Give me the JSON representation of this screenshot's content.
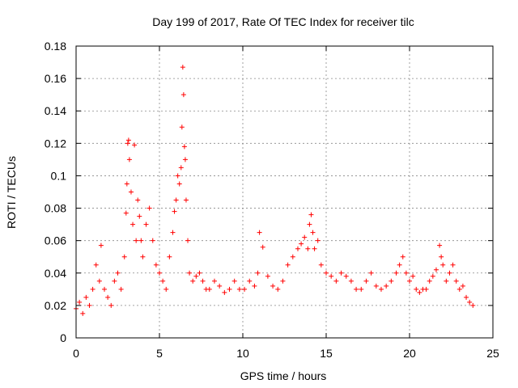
{
  "chart_data": {
    "type": "scatter",
    "title": "Day 199 of 2017, Rate Of TEC Index for receiver tilc",
    "xlabel": "GPS time / hours",
    "ylabel": "ROTI / TECUs",
    "xlim": [
      0,
      25
    ],
    "ylim": [
      0,
      0.18
    ],
    "xticks": [
      0,
      5,
      10,
      15,
      20,
      25
    ],
    "yticks": [
      0,
      0.02,
      0.04,
      0.06,
      0.08,
      0.1,
      0.12,
      0.14,
      0.16,
      0.18
    ],
    "xtick_labels": [
      "0",
      "5",
      "10",
      "15",
      "20",
      "25"
    ],
    "ytick_labels": [
      "0",
      "0.02",
      "0.04",
      "0.06",
      "0.08",
      "0.1",
      "0.12",
      "0.14",
      "0.16",
      "0.18"
    ],
    "grid": true,
    "marker": "+",
    "color": "#ff0000",
    "series": [
      {
        "name": "ROTI",
        "x": [
          0.0,
          0.2,
          0.4,
          0.6,
          0.8,
          1.0,
          1.2,
          1.4,
          1.5,
          1.7,
          1.9,
          2.1,
          2.3,
          2.5,
          2.7,
          2.9,
          3.0,
          3.05,
          3.1,
          3.15,
          3.2,
          3.3,
          3.4,
          3.5,
          3.6,
          3.7,
          3.8,
          3.9,
          4.0,
          4.2,
          4.4,
          4.6,
          4.8,
          5.0,
          5.2,
          5.4,
          5.6,
          5.8,
          5.9,
          6.0,
          6.1,
          6.2,
          6.3,
          6.35,
          6.4,
          6.45,
          6.5,
          6.55,
          6.6,
          6.7,
          6.8,
          7.0,
          7.2,
          7.4,
          7.6,
          7.8,
          8.0,
          8.3,
          8.6,
          8.9,
          9.2,
          9.5,
          9.8,
          10.1,
          10.4,
          10.7,
          10.9,
          11.0,
          11.2,
          11.5,
          11.8,
          12.1,
          12.4,
          12.7,
          13.0,
          13.3,
          13.5,
          13.7,
          13.9,
          14.0,
          14.1,
          14.2,
          14.3,
          14.5,
          14.7,
          15.0,
          15.3,
          15.6,
          15.9,
          16.2,
          16.5,
          16.8,
          17.1,
          17.4,
          17.7,
          18.0,
          18.3,
          18.6,
          18.9,
          19.2,
          19.4,
          19.6,
          19.8,
          20.0,
          20.2,
          20.4,
          20.6,
          20.8,
          21.0,
          21.2,
          21.4,
          21.6,
          21.8,
          21.9,
          22.0,
          22.2,
          22.4,
          22.6,
          22.8,
          23.0,
          23.2,
          23.4,
          23.6,
          23.8
        ],
        "y": [
          0.018,
          0.022,
          0.015,
          0.025,
          0.02,
          0.03,
          0.045,
          0.035,
          0.057,
          0.03,
          0.025,
          0.02,
          0.035,
          0.04,
          0.03,
          0.05,
          0.077,
          0.095,
          0.12,
          0.122,
          0.11,
          0.09,
          0.07,
          0.119,
          0.06,
          0.085,
          0.075,
          0.06,
          0.05,
          0.07,
          0.08,
          0.06,
          0.045,
          0.04,
          0.035,
          0.03,
          0.05,
          0.065,
          0.078,
          0.085,
          0.1,
          0.095,
          0.105,
          0.13,
          0.167,
          0.15,
          0.118,
          0.11,
          0.085,
          0.06,
          0.04,
          0.035,
          0.038,
          0.04,
          0.035,
          0.03,
          0.03,
          0.035,
          0.032,
          0.028,
          0.03,
          0.035,
          0.03,
          0.03,
          0.035,
          0.032,
          0.04,
          0.065,
          0.056,
          0.038,
          0.032,
          0.03,
          0.035,
          0.045,
          0.05,
          0.055,
          0.058,
          0.062,
          0.055,
          0.07,
          0.076,
          0.065,
          0.055,
          0.06,
          0.045,
          0.04,
          0.038,
          0.035,
          0.04,
          0.038,
          0.035,
          0.03,
          0.03,
          0.035,
          0.04,
          0.032,
          0.03,
          0.032,
          0.035,
          0.04,
          0.045,
          0.05,
          0.04,
          0.035,
          0.038,
          0.03,
          0.028,
          0.03,
          0.03,
          0.035,
          0.038,
          0.042,
          0.057,
          0.05,
          0.045,
          0.035,
          0.04,
          0.045,
          0.035,
          0.03,
          0.032,
          0.025,
          0.022,
          0.02
        ]
      }
    ]
  }
}
